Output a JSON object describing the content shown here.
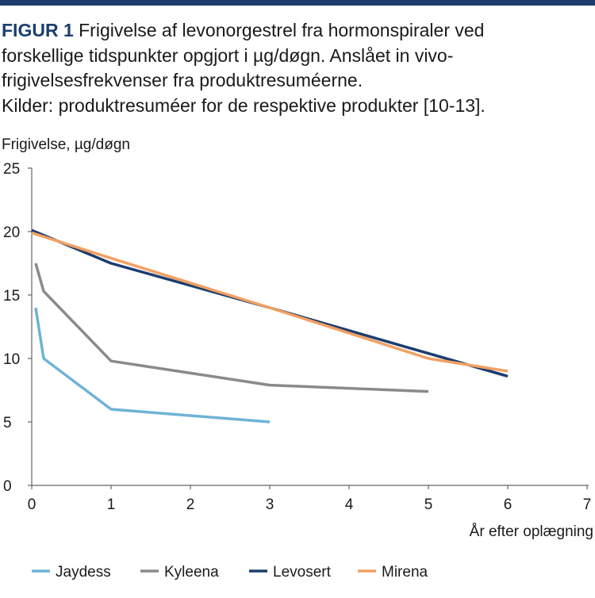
{
  "caption": {
    "figure_label": "FIGUR 1",
    "line1": "Frigivelse af levonorgestrel fra hormonspiraler ved",
    "line2": "forskellige tidspunkter opgjort i µg/døgn. Anslået in vivo-",
    "line3": "frigivelsesfrekvenser fra produktresuméerne.",
    "line4": "Kilder: produktresuméer for de respektive produkter [10-13]."
  },
  "chart_data": {
    "type": "line",
    "title": "",
    "ylabel": "Frigivelse, µg/døgn",
    "xlabel": "År efter oplægning",
    "xlim": [
      0,
      7
    ],
    "ylim": [
      0,
      25
    ],
    "x_ticks": [
      "0",
      "1",
      "2",
      "3",
      "4",
      "5",
      "6",
      "7"
    ],
    "y_ticks": [
      "0",
      "5",
      "10",
      "15",
      "20",
      "25"
    ],
    "grid": false,
    "legend_position": "bottom",
    "series": [
      {
        "name": "Jaydess",
        "color": "#6fb3d6",
        "x": [
          0.05,
          0.15,
          1,
          3
        ],
        "y": [
          14,
          10,
          6,
          5
        ]
      },
      {
        "name": "Kyleena",
        "color": "#8a8a8a",
        "x": [
          0.05,
          0.15,
          1,
          3,
          5
        ],
        "y": [
          17.5,
          15.3,
          9.8,
          7.9,
          7.4
        ]
      },
      {
        "name": "Levosert",
        "color": "#1c3d6e",
        "x": [
          0,
          1,
          3,
          5,
          6
        ],
        "y": [
          20.1,
          17.5,
          14,
          10.4,
          8.6
        ]
      },
      {
        "name": "Mirena",
        "color": "#f2a063",
        "x": [
          0,
          1,
          3,
          5,
          6
        ],
        "y": [
          19.9,
          17.9,
          14,
          10,
          9
        ]
      }
    ]
  }
}
